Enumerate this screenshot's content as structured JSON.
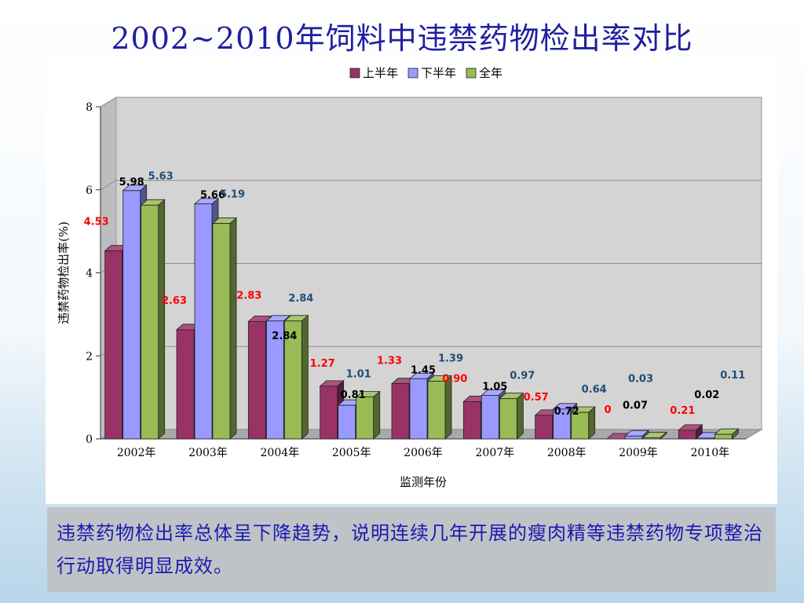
{
  "slide": {
    "title": "2002~2010年饲料中违禁药物检出率对比",
    "note": "违禁药物检出率总体呈下降趋势，说明连续几年开展的瘦肉精等违禁药物专项整治行动取得明显成效。"
  },
  "chart_data": {
    "type": "bar",
    "xlabel": "监测年份",
    "ylabel": "违禁药物检出率(%)",
    "ylim": [
      0,
      8
    ],
    "yticks": [
      0,
      2,
      4,
      6,
      8
    ],
    "grid": true,
    "legend_position": "top",
    "categories": [
      "2002年",
      "2003年",
      "2004年",
      "2005年",
      "2006年",
      "2007年",
      "2008年",
      "2009年",
      "2010年"
    ],
    "series": [
      {
        "name": "上半年",
        "color": "#993366",
        "label_color": "#ff0000",
        "values": [
          4.53,
          2.63,
          2.83,
          1.27,
          1.33,
          0.9,
          0.57,
          0,
          0.21
        ],
        "labels": [
          "4.53",
          "2.63",
          "2.83",
          "1.27",
          "1.33",
          "0.90",
          "0.57",
          "0",
          "0.21"
        ]
      },
      {
        "name": "下半年",
        "color": "#9999ff",
        "label_color": "#1f4e79",
        "values": [
          5.98,
          5.66,
          2.84,
          0.81,
          1.45,
          1.05,
          0.72,
          0.07,
          0.02
        ],
        "labels": [
          "5.98",
          "5.66",
          "2.84",
          "0.81",
          "1.45",
          "1.05",
          "0.72",
          "0.07",
          "0.02"
        ]
      },
      {
        "name": "全年",
        "color": "#99bb55",
        "label_color": "#1f4e79",
        "values": [
          5.63,
          5.19,
          2.84,
          1.01,
          1.39,
          0.97,
          0.64,
          0.03,
          0.11
        ],
        "labels": [
          "5.63",
          "5.19",
          "2.84",
          "1.01",
          "1.39",
          "0.97",
          "0.64",
          "0.03",
          "0.11"
        ]
      }
    ]
  }
}
